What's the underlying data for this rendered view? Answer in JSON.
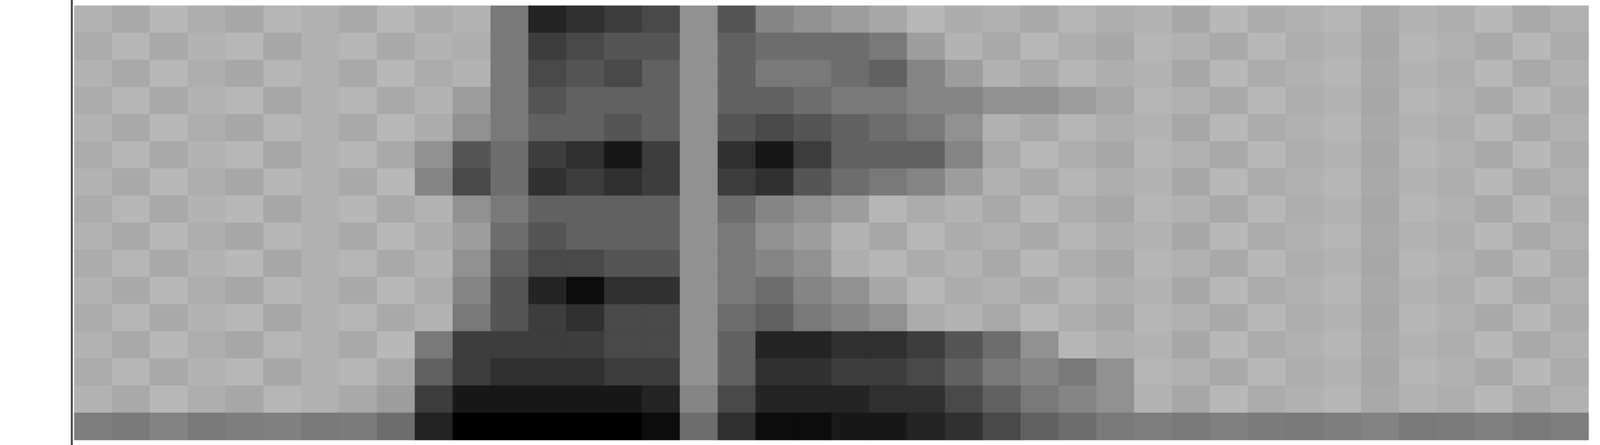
{
  "chart_data": {
    "type": "heatmap",
    "tick_labels": false,
    "color_range": [
      0,
      1
    ],
    "cells": [
      [
        0.26,
        0.3,
        0.24,
        0.28,
        0.31,
        0.25,
        0.27,
        0.3,
        0.24,
        0.29,
        0.26,
        0.5,
        0.85,
        0.8,
        0.75,
        0.7,
        0.4,
        0.65,
        0.45,
        0.4,
        0.35,
        0.31,
        0.24,
        0.29,
        0.27,
        0.3,
        0.25,
        0.28,
        0.26,
        0.31,
        0.24,
        0.29,
        0.27,
        0.25,
        0.3,
        0.26,
        0.28,
        0.24,
        0.3,
        0.27
      ],
      [
        0.29,
        0.25,
        0.3,
        0.26,
        0.24,
        0.31,
        0.27,
        0.25,
        0.3,
        0.26,
        0.28,
        0.5,
        0.75,
        0.7,
        0.65,
        0.65,
        0.4,
        0.6,
        0.55,
        0.55,
        0.55,
        0.5,
        0.35,
        0.26,
        0.3,
        0.24,
        0.28,
        0.31,
        0.25,
        0.27,
        0.3,
        0.24,
        0.28,
        0.26,
        0.31,
        0.25,
        0.27,
        0.3,
        0.24,
        0.29
      ],
      [
        0.26,
        0.3,
        0.24,
        0.28,
        0.31,
        0.25,
        0.27,
        0.3,
        0.24,
        0.29,
        0.26,
        0.5,
        0.7,
        0.65,
        0.7,
        0.6,
        0.4,
        0.6,
        0.5,
        0.5,
        0.55,
        0.6,
        0.45,
        0.35,
        0.27,
        0.3,
        0.25,
        0.28,
        0.26,
        0.31,
        0.24,
        0.29,
        0.27,
        0.25,
        0.3,
        0.26,
        0.28,
        0.24,
        0.3,
        0.27
      ],
      [
        0.29,
        0.25,
        0.3,
        0.26,
        0.24,
        0.31,
        0.27,
        0.25,
        0.3,
        0.26,
        0.35,
        0.5,
        0.65,
        0.6,
        0.6,
        0.6,
        0.4,
        0.6,
        0.6,
        0.55,
        0.5,
        0.5,
        0.45,
        0.45,
        0.4,
        0.4,
        0.35,
        0.31,
        0.25,
        0.27,
        0.3,
        0.24,
        0.28,
        0.26,
        0.31,
        0.25,
        0.27,
        0.3,
        0.24,
        0.29
      ],
      [
        0.26,
        0.3,
        0.24,
        0.28,
        0.31,
        0.25,
        0.27,
        0.3,
        0.24,
        0.29,
        0.4,
        0.5,
        0.6,
        0.6,
        0.65,
        0.6,
        0.4,
        0.65,
        0.7,
        0.65,
        0.6,
        0.55,
        0.5,
        0.4,
        0.27,
        0.3,
        0.25,
        0.28,
        0.26,
        0.31,
        0.24,
        0.29,
        0.27,
        0.25,
        0.3,
        0.26,
        0.28,
        0.24,
        0.3,
        0.27
      ],
      [
        0.29,
        0.25,
        0.3,
        0.26,
        0.24,
        0.31,
        0.27,
        0.25,
        0.3,
        0.4,
        0.65,
        0.55,
        0.75,
        0.8,
        0.9,
        0.75,
        0.4,
        0.8,
        0.9,
        0.75,
        0.6,
        0.6,
        0.6,
        0.45,
        0.3,
        0.24,
        0.28,
        0.31,
        0.25,
        0.27,
        0.3,
        0.24,
        0.28,
        0.26,
        0.31,
        0.25,
        0.27,
        0.3,
        0.24,
        0.29
      ],
      [
        0.26,
        0.3,
        0.24,
        0.28,
        0.31,
        0.25,
        0.27,
        0.3,
        0.24,
        0.45,
        0.7,
        0.55,
        0.8,
        0.75,
        0.8,
        0.75,
        0.4,
        0.75,
        0.8,
        0.65,
        0.55,
        0.5,
        0.45,
        0.35,
        0.27,
        0.3,
        0.25,
        0.28,
        0.26,
        0.31,
        0.24,
        0.29,
        0.27,
        0.25,
        0.3,
        0.26,
        0.28,
        0.24,
        0.3,
        0.27
      ],
      [
        0.29,
        0.25,
        0.3,
        0.26,
        0.24,
        0.31,
        0.27,
        0.25,
        0.3,
        0.26,
        0.4,
        0.5,
        0.6,
        0.6,
        0.6,
        0.6,
        0.4,
        0.55,
        0.45,
        0.4,
        0.35,
        0.25,
        0.29,
        0.26,
        0.3,
        0.24,
        0.28,
        0.31,
        0.25,
        0.27,
        0.3,
        0.24,
        0.28,
        0.26,
        0.31,
        0.25,
        0.27,
        0.3,
        0.24,
        0.29
      ],
      [
        0.26,
        0.3,
        0.24,
        0.28,
        0.31,
        0.25,
        0.27,
        0.3,
        0.24,
        0.29,
        0.35,
        0.55,
        0.65,
        0.6,
        0.6,
        0.6,
        0.4,
        0.5,
        0.4,
        0.35,
        0.26,
        0.31,
        0.24,
        0.29,
        0.27,
        0.3,
        0.25,
        0.28,
        0.26,
        0.31,
        0.24,
        0.29,
        0.27,
        0.25,
        0.3,
        0.26,
        0.28,
        0.24,
        0.3,
        0.27
      ],
      [
        0.29,
        0.25,
        0.3,
        0.26,
        0.24,
        0.31,
        0.27,
        0.25,
        0.3,
        0.26,
        0.4,
        0.6,
        0.7,
        0.7,
        0.65,
        0.65,
        0.4,
        0.5,
        0.45,
        0.4,
        0.28,
        0.25,
        0.29,
        0.26,
        0.3,
        0.24,
        0.28,
        0.31,
        0.25,
        0.27,
        0.3,
        0.24,
        0.28,
        0.26,
        0.31,
        0.25,
        0.27,
        0.3,
        0.24,
        0.29
      ],
      [
        0.26,
        0.3,
        0.24,
        0.28,
        0.31,
        0.25,
        0.27,
        0.3,
        0.24,
        0.29,
        0.45,
        0.65,
        0.85,
        0.95,
        0.8,
        0.8,
        0.4,
        0.5,
        0.55,
        0.45,
        0.4,
        0.31,
        0.24,
        0.29,
        0.27,
        0.3,
        0.25,
        0.28,
        0.26,
        0.31,
        0.24,
        0.29,
        0.27,
        0.25,
        0.3,
        0.26,
        0.28,
        0.24,
        0.3,
        0.27
      ],
      [
        0.29,
        0.25,
        0.3,
        0.26,
        0.24,
        0.31,
        0.27,
        0.25,
        0.3,
        0.26,
        0.5,
        0.65,
        0.75,
        0.8,
        0.7,
        0.7,
        0.4,
        0.55,
        0.6,
        0.5,
        0.45,
        0.4,
        0.29,
        0.26,
        0.3,
        0.24,
        0.28,
        0.31,
        0.25,
        0.27,
        0.3,
        0.24,
        0.28,
        0.26,
        0.31,
        0.25,
        0.27,
        0.3,
        0.24,
        0.29
      ],
      [
        0.26,
        0.3,
        0.24,
        0.28,
        0.31,
        0.25,
        0.27,
        0.3,
        0.24,
        0.5,
        0.75,
        0.75,
        0.75,
        0.75,
        0.7,
        0.7,
        0.4,
        0.6,
        0.85,
        0.85,
        0.8,
        0.8,
        0.75,
        0.65,
        0.55,
        0.4,
        0.25,
        0.28,
        0.26,
        0.31,
        0.24,
        0.29,
        0.27,
        0.25,
        0.3,
        0.26,
        0.28,
        0.24,
        0.3,
        0.27
      ],
      [
        0.29,
        0.25,
        0.3,
        0.26,
        0.24,
        0.31,
        0.27,
        0.25,
        0.3,
        0.6,
        0.75,
        0.8,
        0.8,
        0.8,
        0.75,
        0.75,
        0.4,
        0.6,
        0.8,
        0.8,
        0.75,
        0.75,
        0.7,
        0.6,
        0.5,
        0.45,
        0.5,
        0.4,
        0.25,
        0.27,
        0.3,
        0.24,
        0.28,
        0.26,
        0.31,
        0.25,
        0.27,
        0.3,
        0.24,
        0.29
      ],
      [
        0.26,
        0.3,
        0.24,
        0.28,
        0.31,
        0.25,
        0.27,
        0.3,
        0.35,
        0.75,
        0.9,
        0.9,
        0.9,
        0.9,
        0.9,
        0.85,
        0.45,
        0.7,
        0.85,
        0.85,
        0.85,
        0.8,
        0.8,
        0.7,
        0.6,
        0.5,
        0.45,
        0.4,
        0.26,
        0.31,
        0.24,
        0.29,
        0.27,
        0.25,
        0.3,
        0.26,
        0.28,
        0.24,
        0.3,
        0.27
      ],
      [
        0.48,
        0.5,
        0.46,
        0.5,
        0.48,
        0.47,
        0.5,
        0.49,
        0.55,
        0.85,
        1,
        1,
        1,
        1,
        1,
        0.95,
        0.55,
        0.8,
        0.95,
        0.95,
        0.9,
        0.9,
        0.85,
        0.8,
        0.7,
        0.6,
        0.55,
        0.5,
        0.48,
        0.5,
        0.47,
        0.49,
        0.5,
        0.48,
        0.46,
        0.5,
        0.49,
        0.47,
        0.5,
        0.48
      ]
    ]
  }
}
